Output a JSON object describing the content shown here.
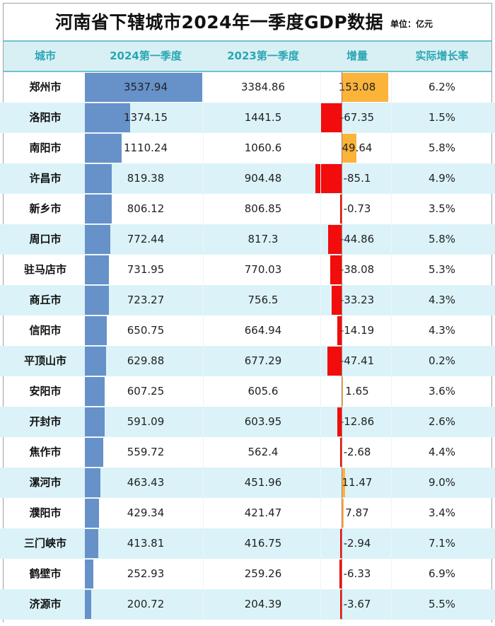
{
  "title": "河南省下辖城市2024年一季度GDP数据",
  "unit": "单位：亿元",
  "headers": [
    "城市",
    "2024第一季度",
    "2023第一季度",
    "增量",
    "实际增长率"
  ],
  "colors": {
    "bar_2024": "#6791c9",
    "increase_positive": "#fbb33a",
    "increase_negative": "#f20c0c",
    "header_bg": "#d8f0f4",
    "header_text": "#2aa6b4",
    "alt_row_bg": "#dbf3f8"
  },
  "rows": [
    {
      "city": "郑州市",
      "q1_2024": "3537.94",
      "q1_2023": "3384.86",
      "increase": "153.08",
      "growth": "6.2%"
    },
    {
      "city": "洛阳市",
      "q1_2024": "1374.15",
      "q1_2023": "1441.5",
      "increase": "-67.35",
      "growth": "1.5%"
    },
    {
      "city": "南阳市",
      "q1_2024": "1110.24",
      "q1_2023": "1060.6",
      "increase": "49.64",
      "growth": "5.8%"
    },
    {
      "city": "许昌市",
      "q1_2024": "819.38",
      "q1_2023": "904.48",
      "increase": "-85.1",
      "growth": "4.9%"
    },
    {
      "city": "新乡市",
      "q1_2024": "806.12",
      "q1_2023": "806.85",
      "increase": "-0.73",
      "growth": "3.5%"
    },
    {
      "city": "周口市",
      "q1_2024": "772.44",
      "q1_2023": "817.3",
      "increase": "-44.86",
      "growth": "5.8%"
    },
    {
      "city": "驻马店市",
      "q1_2024": "731.95",
      "q1_2023": "770.03",
      "increase": "-38.08",
      "growth": "5.3%"
    },
    {
      "city": "商丘市",
      "q1_2024": "723.27",
      "q1_2023": "756.5",
      "increase": "-33.23",
      "growth": "4.3%"
    },
    {
      "city": "信阳市",
      "q1_2024": "650.75",
      "q1_2023": "664.94",
      "increase": "-14.19",
      "growth": "4.3%"
    },
    {
      "city": "平顶山市",
      "q1_2024": "629.88",
      "q1_2023": "677.29",
      "increase": "-47.41",
      "growth": "0.2%"
    },
    {
      "city": "安阳市",
      "q1_2024": "607.25",
      "q1_2023": "605.6",
      "increase": "1.65",
      "growth": "3.6%"
    },
    {
      "city": "开封市",
      "q1_2024": "591.09",
      "q1_2023": "603.95",
      "increase": "-12.86",
      "growth": "2.6%"
    },
    {
      "city": "焦作市",
      "q1_2024": "559.72",
      "q1_2023": "562.4",
      "increase": "-2.68",
      "growth": "4.4%"
    },
    {
      "city": "漯河市",
      "q1_2024": "463.43",
      "q1_2023": "451.96",
      "increase": "11.47",
      "growth": "9.0%"
    },
    {
      "city": "濮阳市",
      "q1_2024": "429.34",
      "q1_2023": "421.47",
      "increase": "7.87",
      "growth": "3.4%"
    },
    {
      "city": "三门峡市",
      "q1_2024": "413.81",
      "q1_2023": "416.75",
      "increase": "-2.94",
      "growth": "7.1%"
    },
    {
      "city": "鹤壁市",
      "q1_2024": "252.93",
      "q1_2023": "259.26",
      "increase": "-6.33",
      "growth": "6.9%"
    },
    {
      "city": "济源市",
      "q1_2024": "200.72",
      "q1_2023": "204.39",
      "increase": "-3.67",
      "growth": "5.5%"
    }
  ],
  "chart_data": {
    "type": "table",
    "title": "河南省下辖城市2024年一季度GDP数据",
    "subtitle": "单位：亿元",
    "columns": [
      "城市",
      "2024第一季度",
      "2023第一季度",
      "增量",
      "实际增长率"
    ],
    "categories": [
      "郑州市",
      "洛阳市",
      "南阳市",
      "许昌市",
      "新乡市",
      "周口市",
      "驻马店市",
      "商丘市",
      "信阳市",
      "平顶山市",
      "安阳市",
      "开封市",
      "焦作市",
      "漯河市",
      "濮阳市",
      "三门峡市",
      "鹤壁市",
      "济源市"
    ],
    "series": [
      {
        "name": "2024第一季度",
        "values": [
          3537.94,
          1374.15,
          1110.24,
          819.38,
          806.12,
          772.44,
          731.95,
          723.27,
          650.75,
          629.88,
          607.25,
          591.09,
          559.72,
          463.43,
          429.34,
          413.81,
          252.93,
          200.72
        ]
      },
      {
        "name": "2023第一季度",
        "values": [
          3384.86,
          1441.5,
          1060.6,
          904.48,
          806.85,
          817.3,
          770.03,
          756.5,
          664.94,
          677.29,
          605.6,
          603.95,
          562.4,
          451.96,
          421.47,
          416.75,
          259.26,
          204.39
        ]
      },
      {
        "name": "增量",
        "values": [
          153.08,
          -67.35,
          49.64,
          -85.1,
          -0.73,
          -44.86,
          -38.08,
          -33.23,
          -14.19,
          -47.41,
          1.65,
          -12.86,
          -2.68,
          11.47,
          7.87,
          -2.94,
          -6.33,
          -3.67
        ]
      },
      {
        "name": "实际增长率(%)",
        "values": [
          6.2,
          1.5,
          5.8,
          4.9,
          3.5,
          5.8,
          5.3,
          4.3,
          4.3,
          0.2,
          3.6,
          2.6,
          4.4,
          9.0,
          3.4,
          7.1,
          6.9,
          5.5
        ]
      }
    ]
  }
}
